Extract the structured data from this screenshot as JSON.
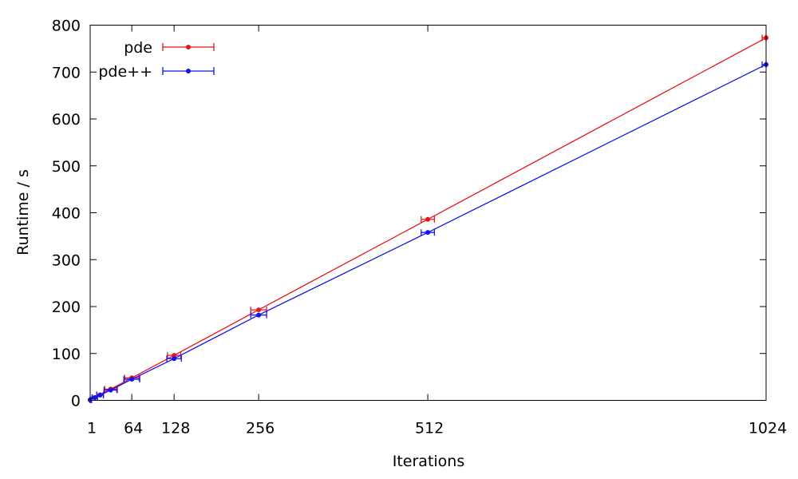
{
  "chart_data": {
    "type": "line",
    "title": "",
    "xlabel": "Iterations",
    "ylabel": "Runtime / s",
    "xlim": [
      1,
      1024
    ],
    "ylim": [
      0,
      800
    ],
    "x_ticks": [
      1,
      64,
      128,
      256,
      512,
      1024
    ],
    "y_ticks": [
      0,
      100,
      200,
      300,
      400,
      500,
      600,
      700,
      800
    ],
    "grid": false,
    "legend_position": "top-left",
    "error_bars": "horizontal",
    "series": [
      {
        "name": "pde",
        "color": "#e8141a",
        "points": [
          {
            "x": 1,
            "y": 1,
            "xerr": 2
          },
          {
            "x": 8,
            "y": 6,
            "xerr": 4
          },
          {
            "x": 16,
            "y": 12,
            "xerr": 5
          },
          {
            "x": 32,
            "y": 24,
            "xerr": 9
          },
          {
            "x": 64,
            "y": 48,
            "xerr": 11
          },
          {
            "x": 128,
            "y": 96,
            "xerr": 10
          },
          {
            "x": 256,
            "y": 193,
            "xerr": 12
          },
          {
            "x": 512,
            "y": 386,
            "xerr": 10
          },
          {
            "x": 1024,
            "y": 773,
            "xerr": 6
          }
        ]
      },
      {
        "name": "pde++",
        "color": "#1414e6",
        "points": [
          {
            "x": 1,
            "y": 1,
            "xerr": 2
          },
          {
            "x": 8,
            "y": 6,
            "xerr": 4
          },
          {
            "x": 16,
            "y": 11,
            "xerr": 5
          },
          {
            "x": 32,
            "y": 22,
            "xerr": 10
          },
          {
            "x": 64,
            "y": 45,
            "xerr": 12
          },
          {
            "x": 128,
            "y": 89,
            "xerr": 11
          },
          {
            "x": 256,
            "y": 182,
            "xerr": 12
          },
          {
            "x": 512,
            "y": 358,
            "xerr": 10
          },
          {
            "x": 1024,
            "y": 716,
            "xerr": 6
          }
        ]
      }
    ]
  }
}
